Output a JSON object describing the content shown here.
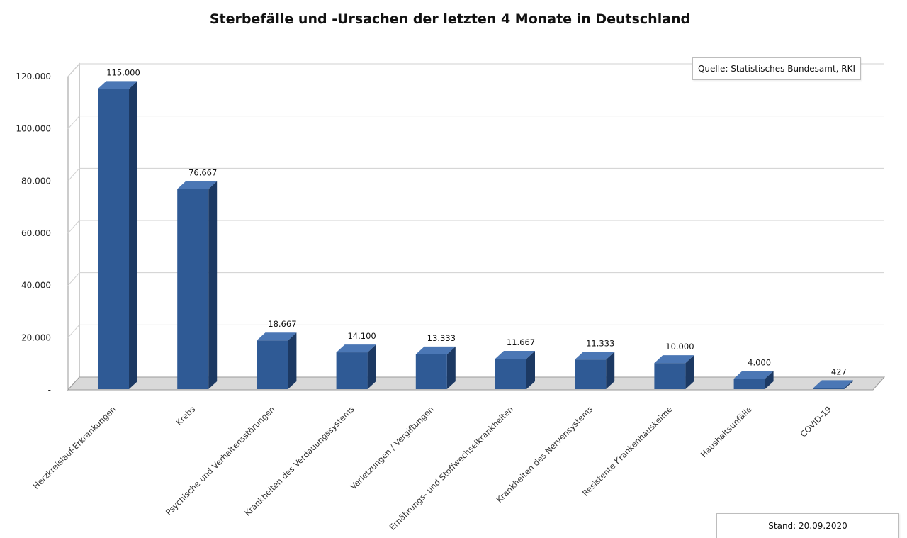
{
  "title": "Sterbefälle und -Ursachen der letzten 4 Monate in Deutschland",
  "source_note": "Quelle: Statistisches Bundesamt, RKI",
  "date_note": "Stand: 20.09.2020",
  "colors": {
    "bar_front": "#2f5a95",
    "bar_side": "#1c3963",
    "bar_top": "#4b77b5",
    "gridline": "#d0d0d0",
    "floor": "#d9d9d9"
  },
  "chart_data": {
    "type": "bar",
    "style": "3d-column",
    "title": "Sterbefälle und -Ursachen der letzten 4 Monate in Deutschland",
    "xlabel": "",
    "ylabel": "",
    "ylim": [
      0,
      120000
    ],
    "yticks": [
      0,
      20000,
      40000,
      60000,
      80000,
      100000,
      120000
    ],
    "ytick_labels": [
      "-",
      "20.000",
      "40.000",
      "60.000",
      "80.000",
      "100.000",
      "120.000"
    ],
    "grid": true,
    "legend": "none",
    "categories": [
      "Herzkreislauf-Erkrankungen",
      "Krebs",
      "Psychische und Verhaltensstörungen",
      "Krankheiten des Verdauungssystems",
      "Verletzungen / Vergiftungen",
      "Ernährungs- und Stoffwechselkrankheiten",
      "Krankheiten des Nervensystems",
      "Resistente Krankenhauskeime",
      "Haushaltsunfälle",
      "COVID-19"
    ],
    "values": [
      115000,
      76667,
      18667,
      14100,
      13333,
      11667,
      11333,
      10000,
      4000,
      427
    ],
    "value_labels": [
      "115.000",
      "76.667",
      "18.667",
      "14.100",
      "13.333",
      "11.667",
      "11.333",
      "10.000",
      "4.000",
      "427"
    ]
  }
}
